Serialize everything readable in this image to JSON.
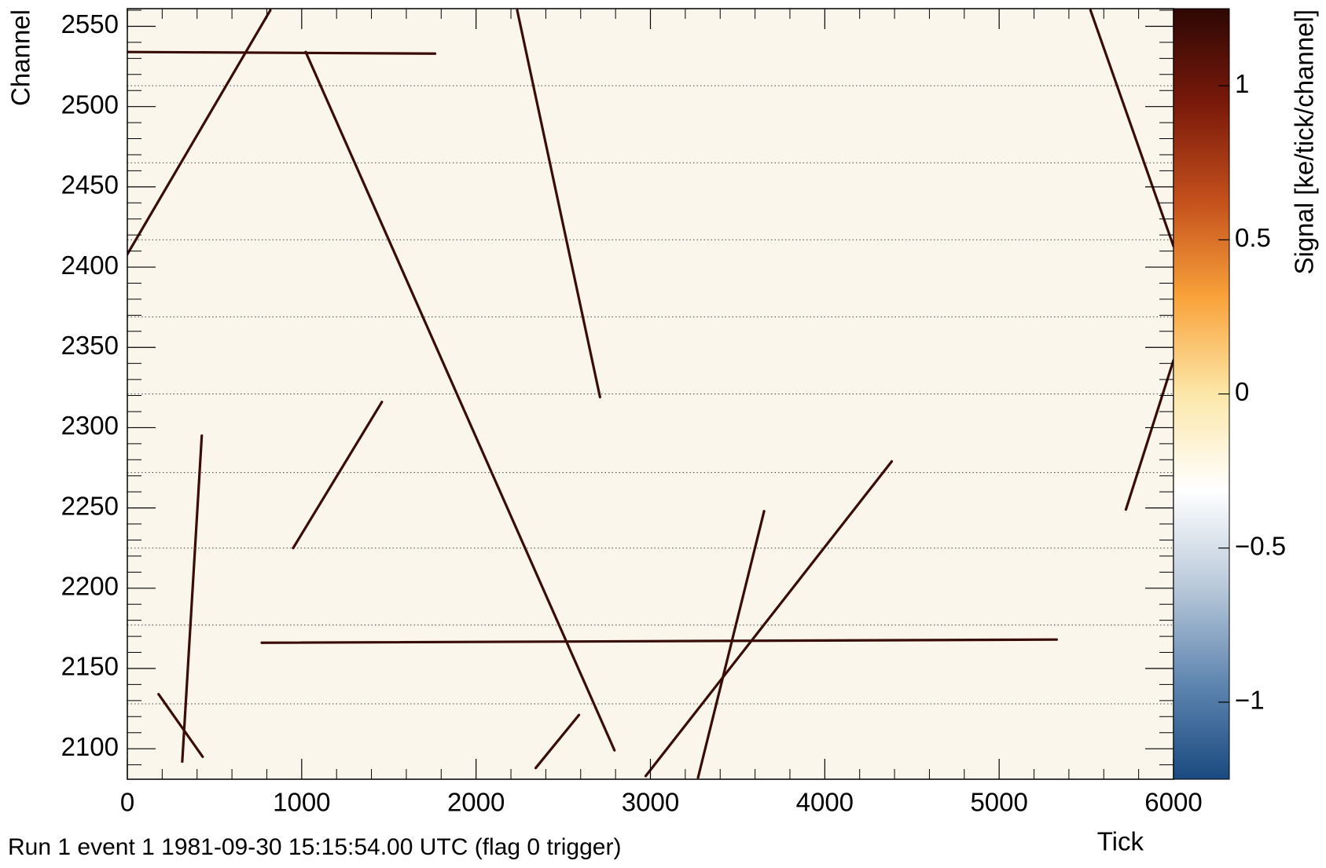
{
  "chart_data": {
    "type": "heatmap",
    "footer": "Run 1 event 1 1981-09-30 15:15:54.00 UTC (flag 0 trigger)",
    "x_label": "Tick",
    "y_label": "Channel",
    "colorbar_label": "Signal [ke/tick/channel]",
    "xlim": [
      0,
      6000
    ],
    "xticks": [
      0,
      1000,
      2000,
      3000,
      4000,
      5000,
      6000
    ],
    "ylim": [
      2081,
      2561
    ],
    "yticks": [
      2100,
      2150,
      2200,
      2250,
      2300,
      2350,
      2400,
      2450,
      2500,
      2550
    ],
    "zlim": [
      -1.25,
      1.25
    ],
    "zticks": [
      {
        "value": -1,
        "label": "−1"
      },
      {
        "value": -0.5,
        "label": "−0.5"
      },
      0,
      0.5,
      1
    ],
    "colormap": [
      "#1a4a80",
      "#5f86b0",
      "#b9c9da",
      "#ffffff",
      "#fce7a8",
      "#f9a23a",
      "#c4501c",
      "#7a1a0a",
      "#2e0704"
    ],
    "background": "#fbf6ec",
    "track_color": "#3a0c06",
    "channel_boundaries": [
      2128,
      2177,
      2225,
      2272,
      2321,
      2369,
      2417,
      2465,
      2513
    ],
    "tracks": [
      {
        "x": [
          0,
          820
        ],
        "y": [
          2408,
          2560
        ]
      },
      {
        "x": [
          0,
          1765
        ],
        "y": [
          2534,
          2533
        ]
      },
      {
        "x": [
          1023,
          2794
        ],
        "y": [
          2534,
          2099
        ]
      },
      {
        "x": [
          2236,
          2711
        ],
        "y": [
          2560,
          2319
        ]
      },
      {
        "x": [
          5524,
          6000
        ],
        "y": [
          2560,
          2413
        ]
      },
      {
        "x": [
          6000,
          5727
        ],
        "y": [
          2342,
          2249
        ]
      },
      {
        "x": [
          951,
          1460
        ],
        "y": [
          2225,
          2316
        ]
      },
      {
        "x": [
          427,
          315
        ],
        "y": [
          2295,
          2092
        ]
      },
      {
        "x": [
          179,
          432
        ],
        "y": [
          2134,
          2095
        ]
      },
      {
        "x": [
          771,
          5330
        ],
        "y": [
          2166,
          2168
        ]
      },
      {
        "x": [
          2342,
          2590
        ],
        "y": [
          2088,
          2121
        ]
      },
      {
        "x": [
          2973,
          4384
        ],
        "y": [
          2083,
          2279
        ]
      },
      {
        "x": [
          3273,
          3652
        ],
        "y": [
          2082,
          2248
        ]
      }
    ]
  }
}
